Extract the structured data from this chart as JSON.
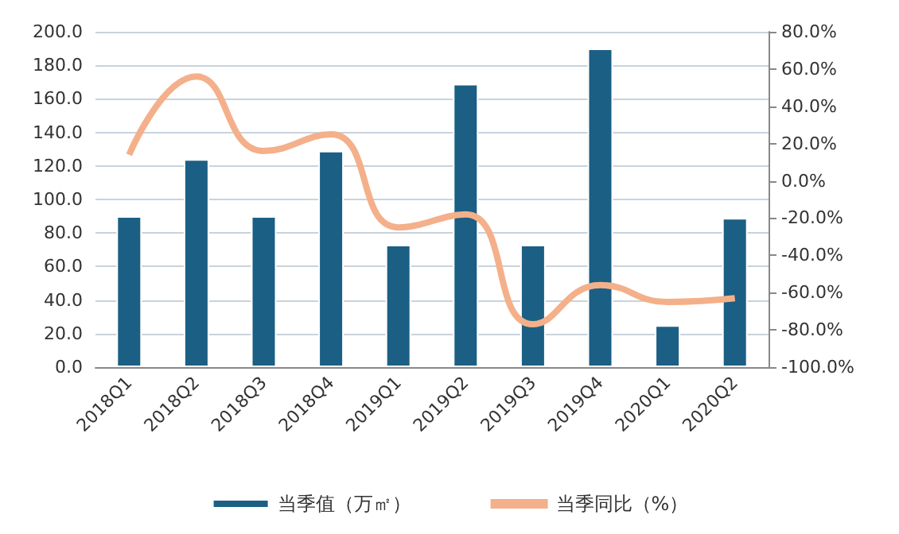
{
  "chart_data": {
    "type": "bar",
    "categories": [
      "2018Q1",
      "2018Q2",
      "2018Q3",
      "2018Q4",
      "2019Q1",
      "2019Q2",
      "2019Q3",
      "2019Q4",
      "2020Q1",
      "2020Q2"
    ],
    "series": [
      {
        "name": "当季值（万㎡）",
        "color": "#1b5f84",
        "values": [
          90,
          124,
          90,
          129,
          73,
          169,
          73,
          190,
          25,
          89
        ]
      },
      {
        "name": "当季同比（%）",
        "type": "line",
        "axis": "y2",
        "color": "#f4b08a",
        "marker": "none",
        "values": [
          14,
          56,
          16,
          25,
          -25,
          -18,
          -77,
          -56,
          -65,
          -63
        ]
      }
    ],
    "ylim": [
      0,
      200
    ],
    "yticks": [
      {
        "value": 0,
        "label": "0.0"
      },
      {
        "value": 20,
        "label": "20.0"
      },
      {
        "value": 40,
        "label": "40.0"
      },
      {
        "value": 60,
        "label": "60.0"
      },
      {
        "value": 80,
        "label": "80.0"
      },
      {
        "value": 100,
        "label": "100.0"
      },
      {
        "value": 120,
        "label": "120.0"
      },
      {
        "value": 140,
        "label": "140.0"
      },
      {
        "value": 160,
        "label": "160.0"
      },
      {
        "value": 180,
        "label": "180.0"
      },
      {
        "value": 200,
        "label": "200.0"
      }
    ],
    "y2lim": [
      -100,
      80
    ],
    "y2ticks": [
      {
        "value": -100,
        "label": "-100.0%"
      },
      {
        "value": -80,
        "label": "-80.0%"
      },
      {
        "value": -60,
        "label": "-60.0%"
      },
      {
        "value": -40,
        "label": "-40.0%"
      },
      {
        "value": -20,
        "label": "-20.0%"
      },
      {
        "value": 0,
        "label": "0.0%"
      },
      {
        "value": 20,
        "label": "20.0%"
      },
      {
        "value": 40,
        "label": "40.0%"
      },
      {
        "value": 60,
        "label": "60.0%"
      },
      {
        "value": 80,
        "label": "80.0%"
      }
    ],
    "grid": "y",
    "legend": "bottom"
  }
}
